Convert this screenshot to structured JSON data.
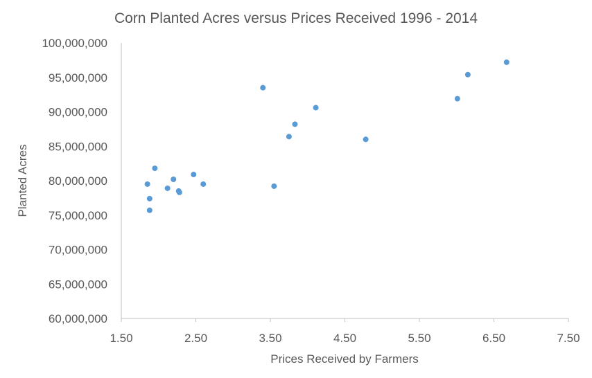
{
  "chart_data": {
    "type": "scatter",
    "title": "Corn Planted Acres versus Prices Received 1996 - 2014",
    "xlabel": "Prices Received by Farmers",
    "ylabel": "Planted Acres",
    "xlim": [
      1.5,
      7.5
    ],
    "ylim": [
      60000000,
      100000000
    ],
    "x_ticks": [
      1.5,
      2.5,
      3.5,
      4.5,
      5.5,
      6.5,
      7.5
    ],
    "x_tick_labels": [
      "1.50",
      "2.50",
      "3.50",
      "4.50",
      "5.50",
      "6.50",
      "7.50"
    ],
    "y_ticks": [
      60000000,
      65000000,
      70000000,
      75000000,
      80000000,
      85000000,
      90000000,
      95000000,
      100000000
    ],
    "y_tick_labels": [
      "60,000,000",
      "65,000,000",
      "70,000,000",
      "75,000,000",
      "80,000,000",
      "85,000,000",
      "90,000,000",
      "95,000,000",
      "100,000,000"
    ],
    "grid": false,
    "legend": "none",
    "marker_color": "#5b9bd5",
    "axis_color": "#bfbfbf",
    "text_color": "#595959",
    "series": [
      {
        "points": [
          {
            "x": 1.85,
            "y": 79500000
          },
          {
            "x": 1.88,
            "y": 77400000
          },
          {
            "x": 1.88,
            "y": 75700000
          },
          {
            "x": 1.95,
            "y": 81800000
          },
          {
            "x": 2.12,
            "y": 78900000
          },
          {
            "x": 2.2,
            "y": 80200000
          },
          {
            "x": 2.27,
            "y": 78500000
          },
          {
            "x": 2.28,
            "y": 78300000
          },
          {
            "x": 2.47,
            "y": 80900000
          },
          {
            "x": 2.6,
            "y": 79500000
          },
          {
            "x": 3.4,
            "y": 93500000
          },
          {
            "x": 3.55,
            "y": 79200000
          },
          {
            "x": 3.75,
            "y": 86400000
          },
          {
            "x": 3.83,
            "y": 88200000
          },
          {
            "x": 4.11,
            "y": 90600000
          },
          {
            "x": 4.78,
            "y": 86000000
          },
          {
            "x": 6.01,
            "y": 91900000
          },
          {
            "x": 6.15,
            "y": 95400000
          },
          {
            "x": 6.67,
            "y": 97200000
          }
        ]
      }
    ]
  }
}
